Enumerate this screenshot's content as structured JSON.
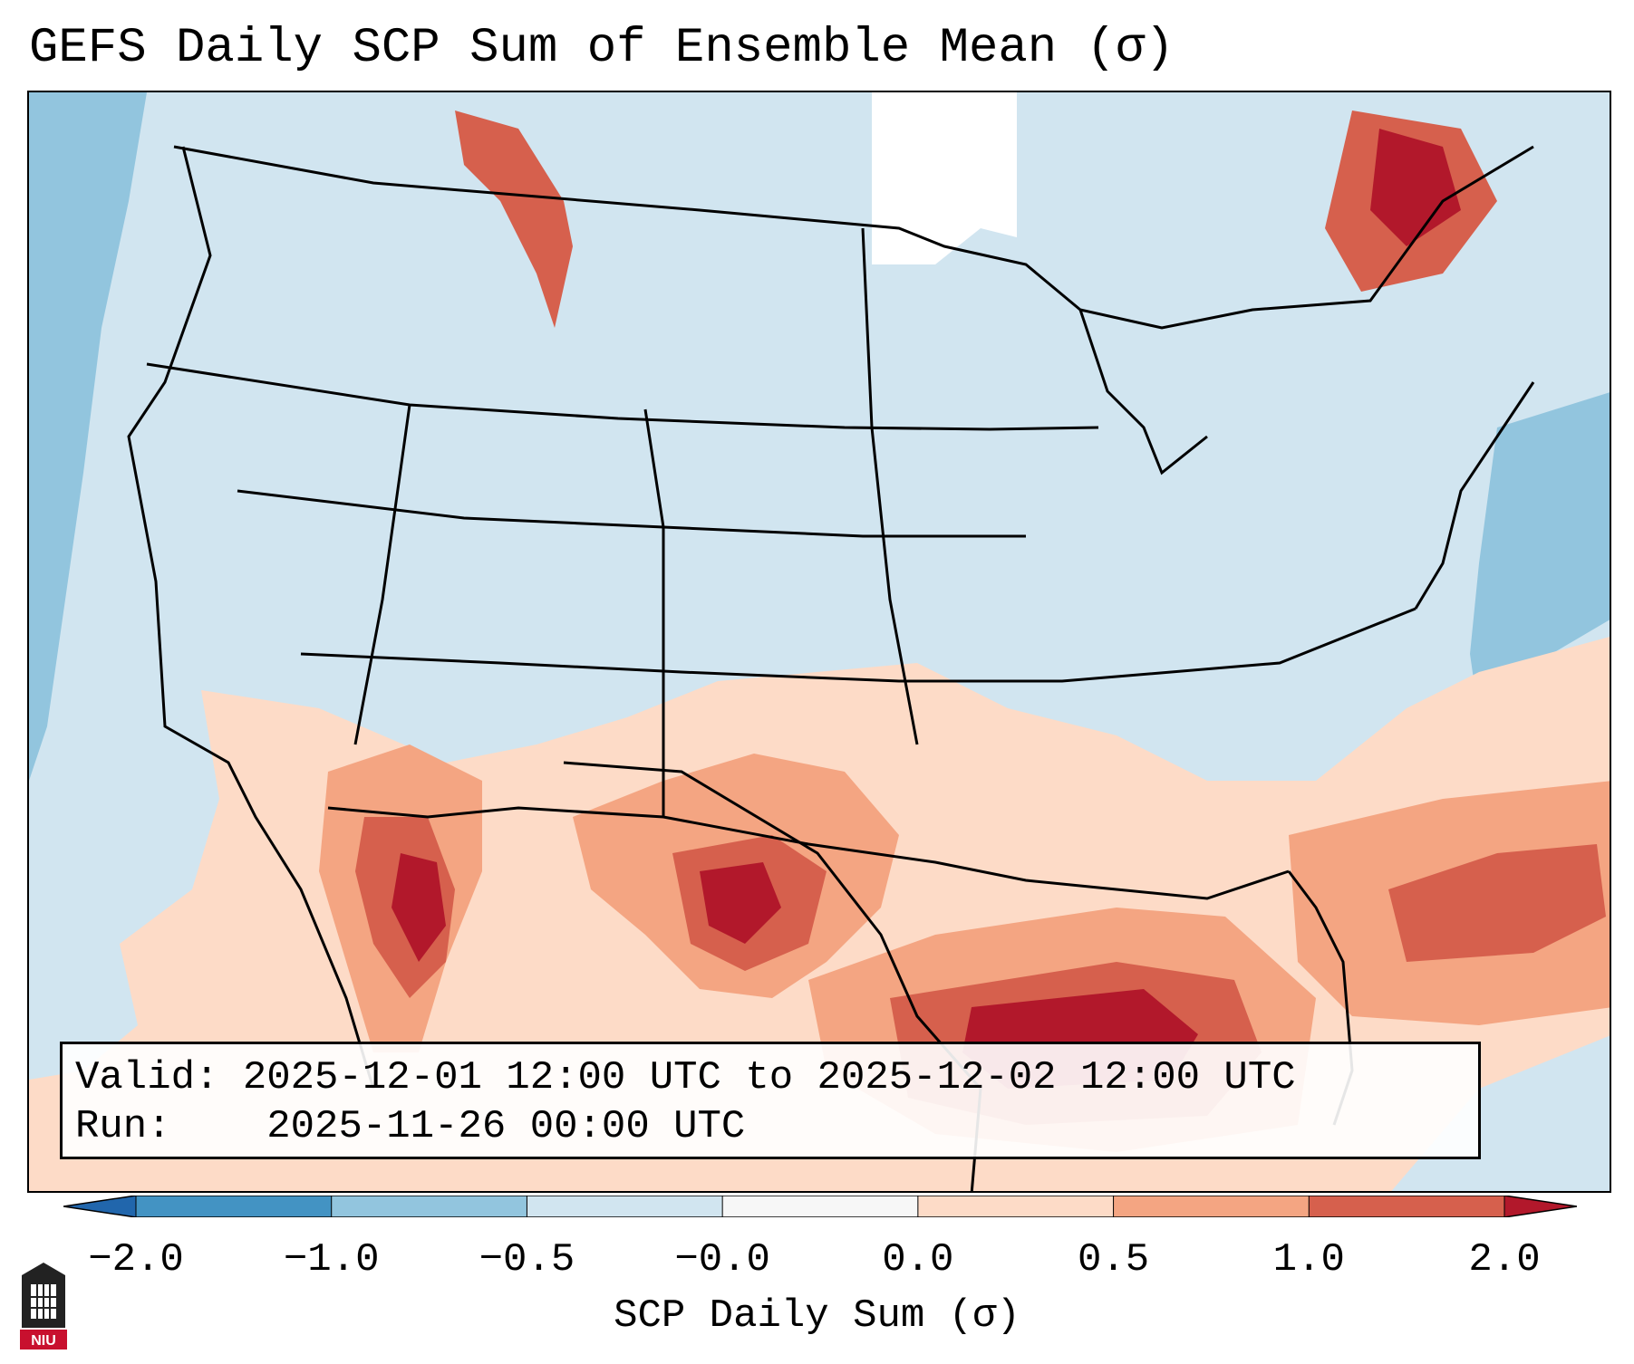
{
  "title": "GEFS Daily SCP Sum of Ensemble Mean (σ)",
  "info": {
    "valid_label": "Valid:",
    "valid_value": "2025-12-01 12:00 UTC to 2025-12-02 12:00 UTC",
    "run_label": "Run:",
    "run_value": "2025-11-26 00:00 UTC"
  },
  "colorbar": {
    "title": "SCP Daily Sum (σ)",
    "ticks": [
      "−2.0",
      "−1.0",
      "−0.5",
      "−0.0",
      "0.0",
      "0.5",
      "1.0",
      "2.0"
    ],
    "bins": [
      {
        "from": -2.0,
        "to": -1.0,
        "color": "#4393c3"
      },
      {
        "from": -1.0,
        "to": -0.5,
        "color": "#92c5de"
      },
      {
        "from": -0.5,
        "to": -0.0,
        "color": "#d1e5f0"
      },
      {
        "from": -0.0,
        "to": 0.0,
        "color": "#f7f7f7"
      },
      {
        "from": 0.0,
        "to": 0.5,
        "color": "#fddbc7"
      },
      {
        "from": 0.5,
        "to": 1.0,
        "color": "#f4a582"
      },
      {
        "from": 1.0,
        "to": 2.0,
        "color": "#d6604d"
      }
    ],
    "under_color": "#2166ac",
    "over_color": "#b2182b"
  },
  "logo": {
    "text": "NIU"
  },
  "colors": {
    "ocean_negative": "#92c5de",
    "land_neutral": "#d1e5f0",
    "zero": "#ffffff",
    "light_positive": "#fddbc7",
    "mid_positive": "#f4a582",
    "high_positive": "#d6604d",
    "max_positive": "#b2182b"
  }
}
